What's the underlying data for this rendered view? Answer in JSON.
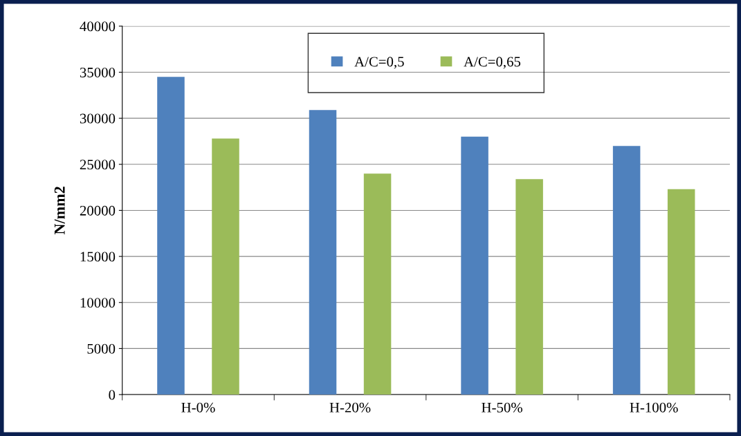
{
  "chart_data": {
    "type": "bar",
    "ylabel": "N/mm2",
    "categories": [
      "H-0%",
      "H-20%",
      "H-50%",
      "H-100%"
    ],
    "series": [
      {
        "name": "A/C=0,5",
        "color": "#4f81bd",
        "values": [
          34500,
          30900,
          28000,
          27000
        ]
      },
      {
        "name": "A/C=0,65",
        "color": "#9bbb59",
        "values": [
          27800,
          24000,
          23400,
          22300
        ]
      }
    ],
    "ylim": [
      0,
      40000
    ],
    "yticks": [
      0,
      5000,
      10000,
      15000,
      20000,
      25000,
      30000,
      35000,
      40000
    ],
    "grid": "y",
    "legend": "top"
  }
}
